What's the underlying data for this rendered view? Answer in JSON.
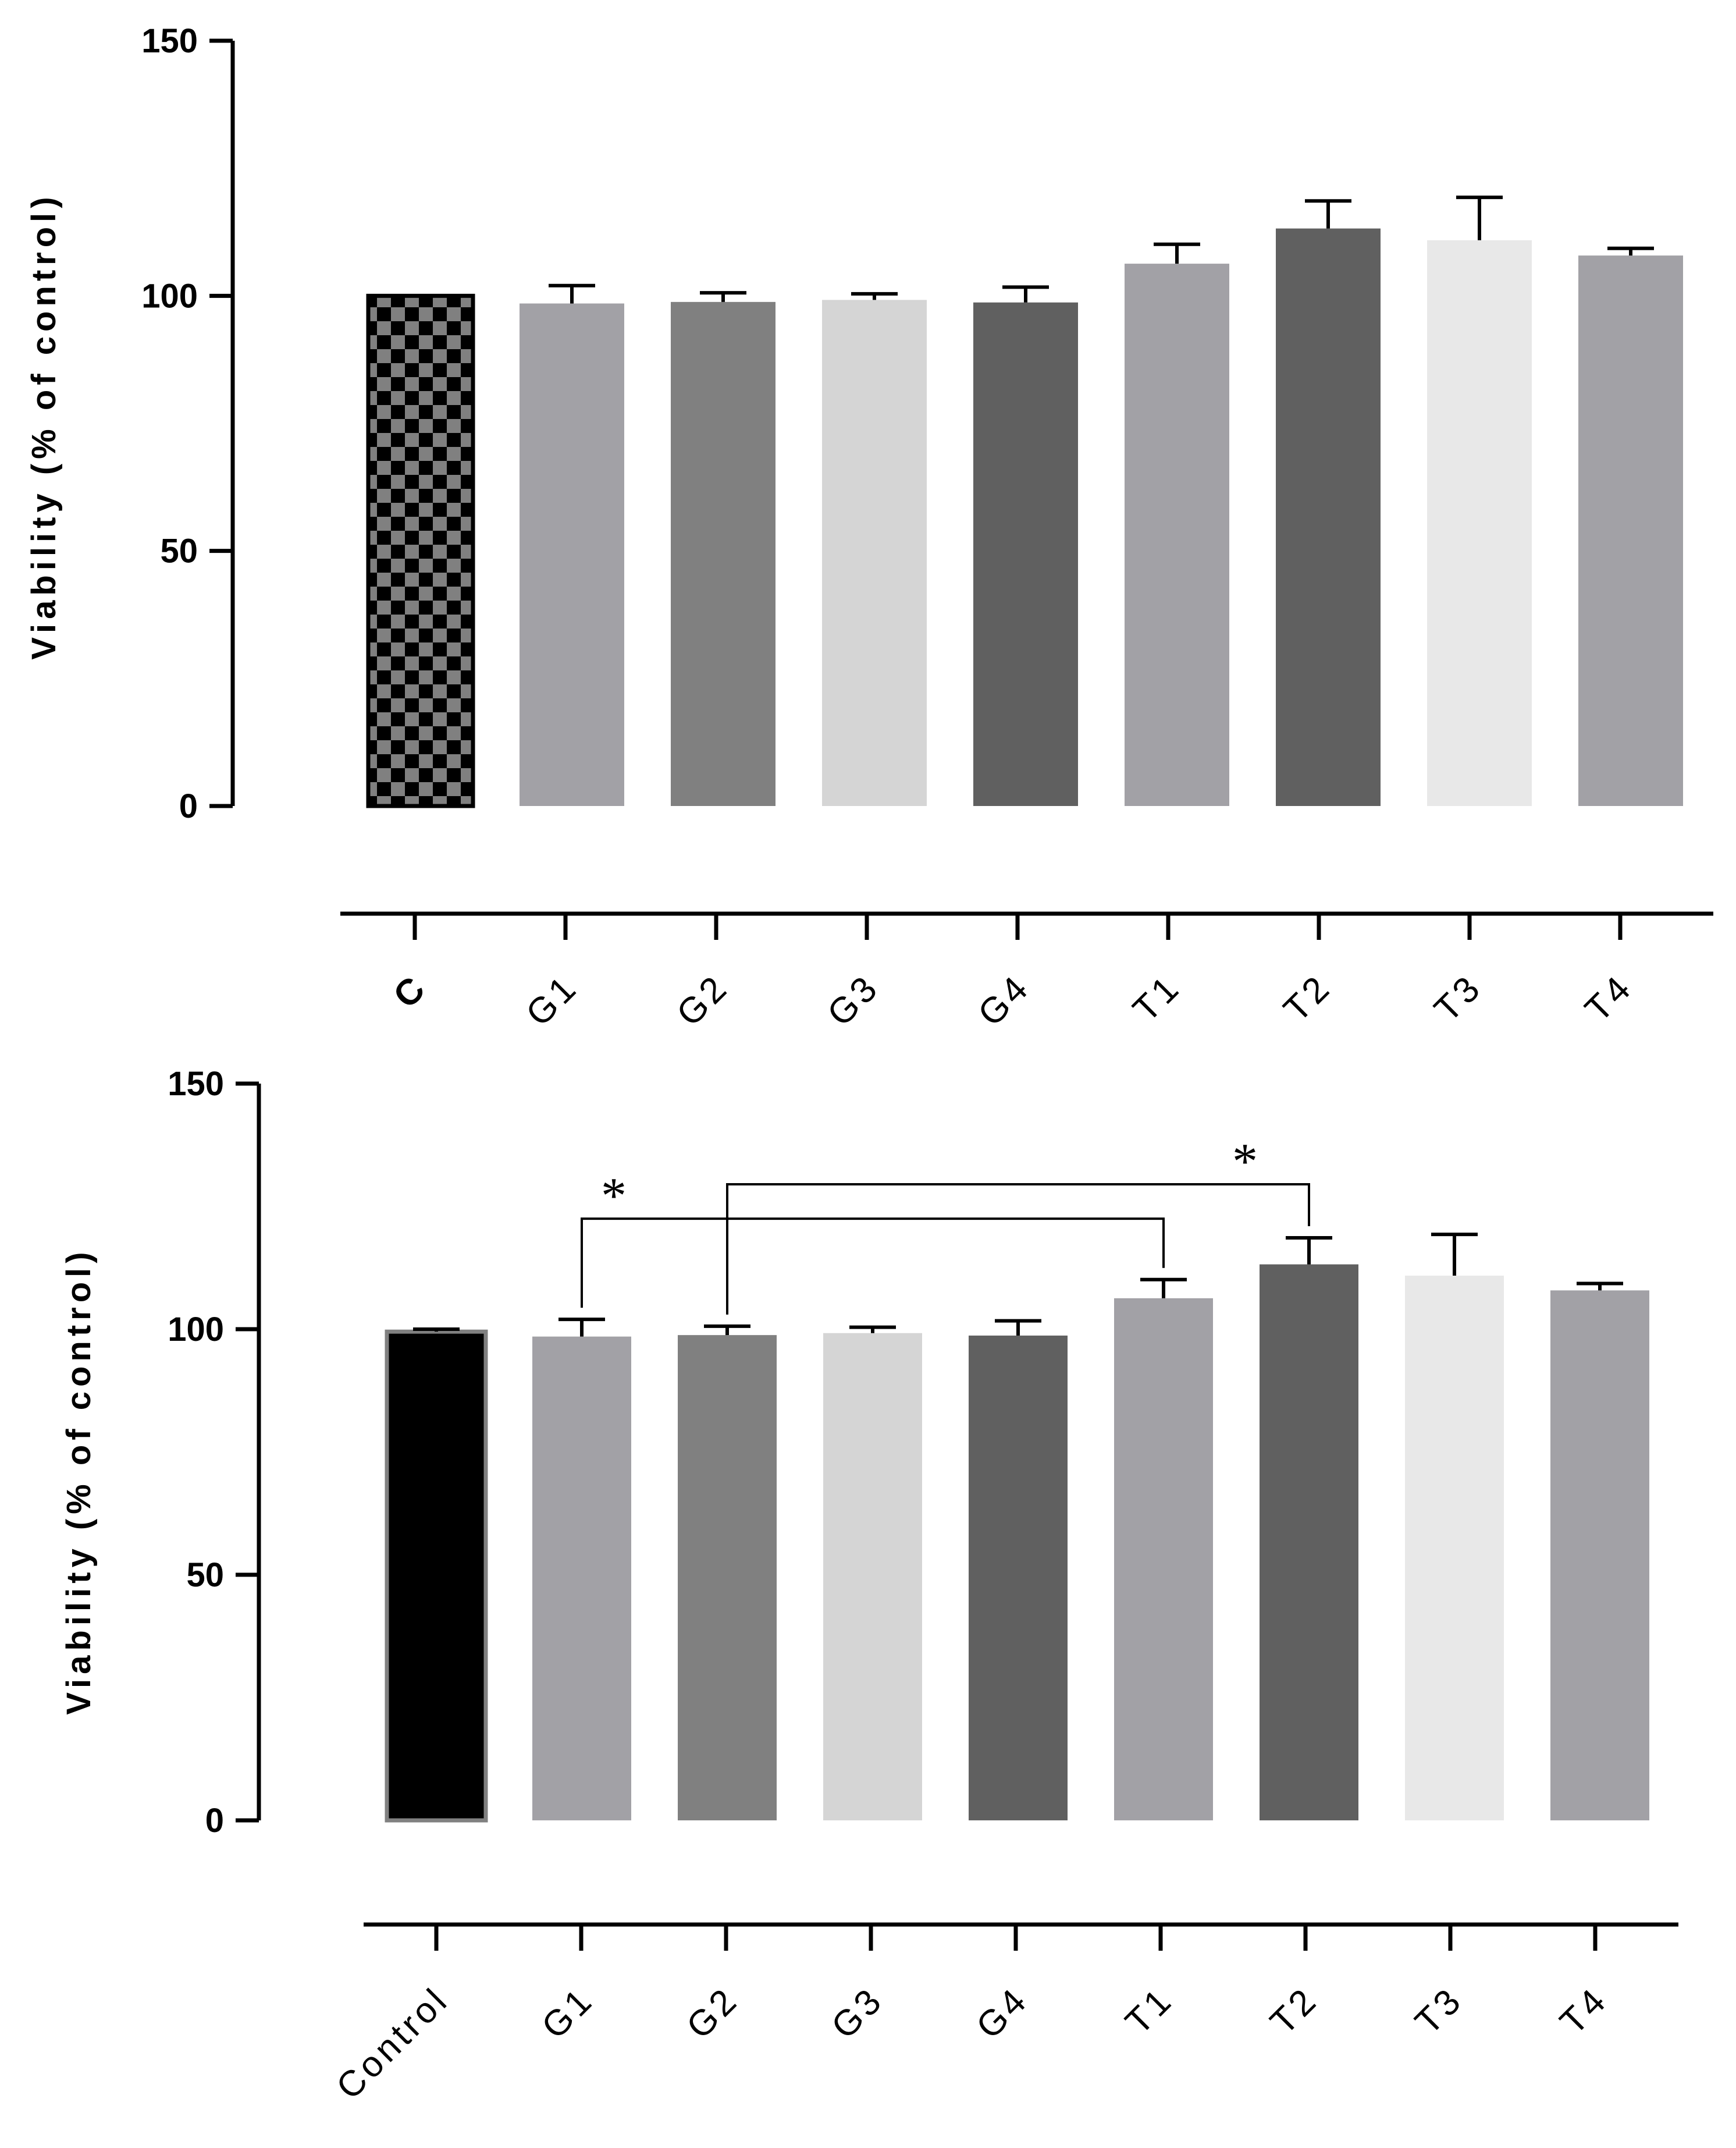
{
  "chart_data": [
    {
      "type": "bar",
      "title": "",
      "xlabel": "",
      "ylabel": "Viability (% of control)",
      "ylim": [
        0,
        150
      ],
      "yticks": [
        0,
        50,
        100,
        150
      ],
      "categories": [
        "C",
        "G1",
        "G2",
        "G3",
        "G4",
        "T1",
        "T2",
        "T3",
        "T4"
      ],
      "values": [
        100,
        98.5,
        98.8,
        99.2,
        98.7,
        106.3,
        113.2,
        110.9,
        107.9
      ],
      "errors": [
        0,
        3.5,
        1.8,
        1.2,
        3.0,
        3.8,
        5.4,
        8.4,
        1.4
      ],
      "colors": [
        "checker",
        "#a2a1a6",
        "#808080",
        "#d5d5d5",
        "#606060",
        "#a2a1a6",
        "#606060",
        "#e8e8e8",
        "#a2a1a6"
      ],
      "annotations": []
    },
    {
      "type": "bar",
      "title": "",
      "xlabel": "",
      "ylabel": "Viability (% of control)",
      "ylim": [
        0,
        150
      ],
      "yticks": [
        0,
        50,
        100,
        150
      ],
      "categories": [
        "Control",
        "G1",
        "G2",
        "G3",
        "G4",
        "T1",
        "T2",
        "T3",
        "T4"
      ],
      "values": [
        99.5,
        98.5,
        98.8,
        99.2,
        98.7,
        106.3,
        113.2,
        110.9,
        107.9
      ],
      "errors": [
        0.5,
        3.5,
        1.8,
        1.2,
        3.0,
        3.8,
        5.4,
        8.4,
        1.4
      ],
      "colors": [
        "#000000",
        "#a2a1a6",
        "#808080",
        "#d5d5d5",
        "#606060",
        "#a2a1a6",
        "#606060",
        "#e8e8e8",
        "#a2a1a6"
      ],
      "annotations": [
        {
          "from": "G1",
          "to": "T1",
          "label": "*",
          "level": 122.5
        },
        {
          "from": "G2",
          "to": "T2",
          "label": "*",
          "level": 129.5
        }
      ]
    }
  ]
}
